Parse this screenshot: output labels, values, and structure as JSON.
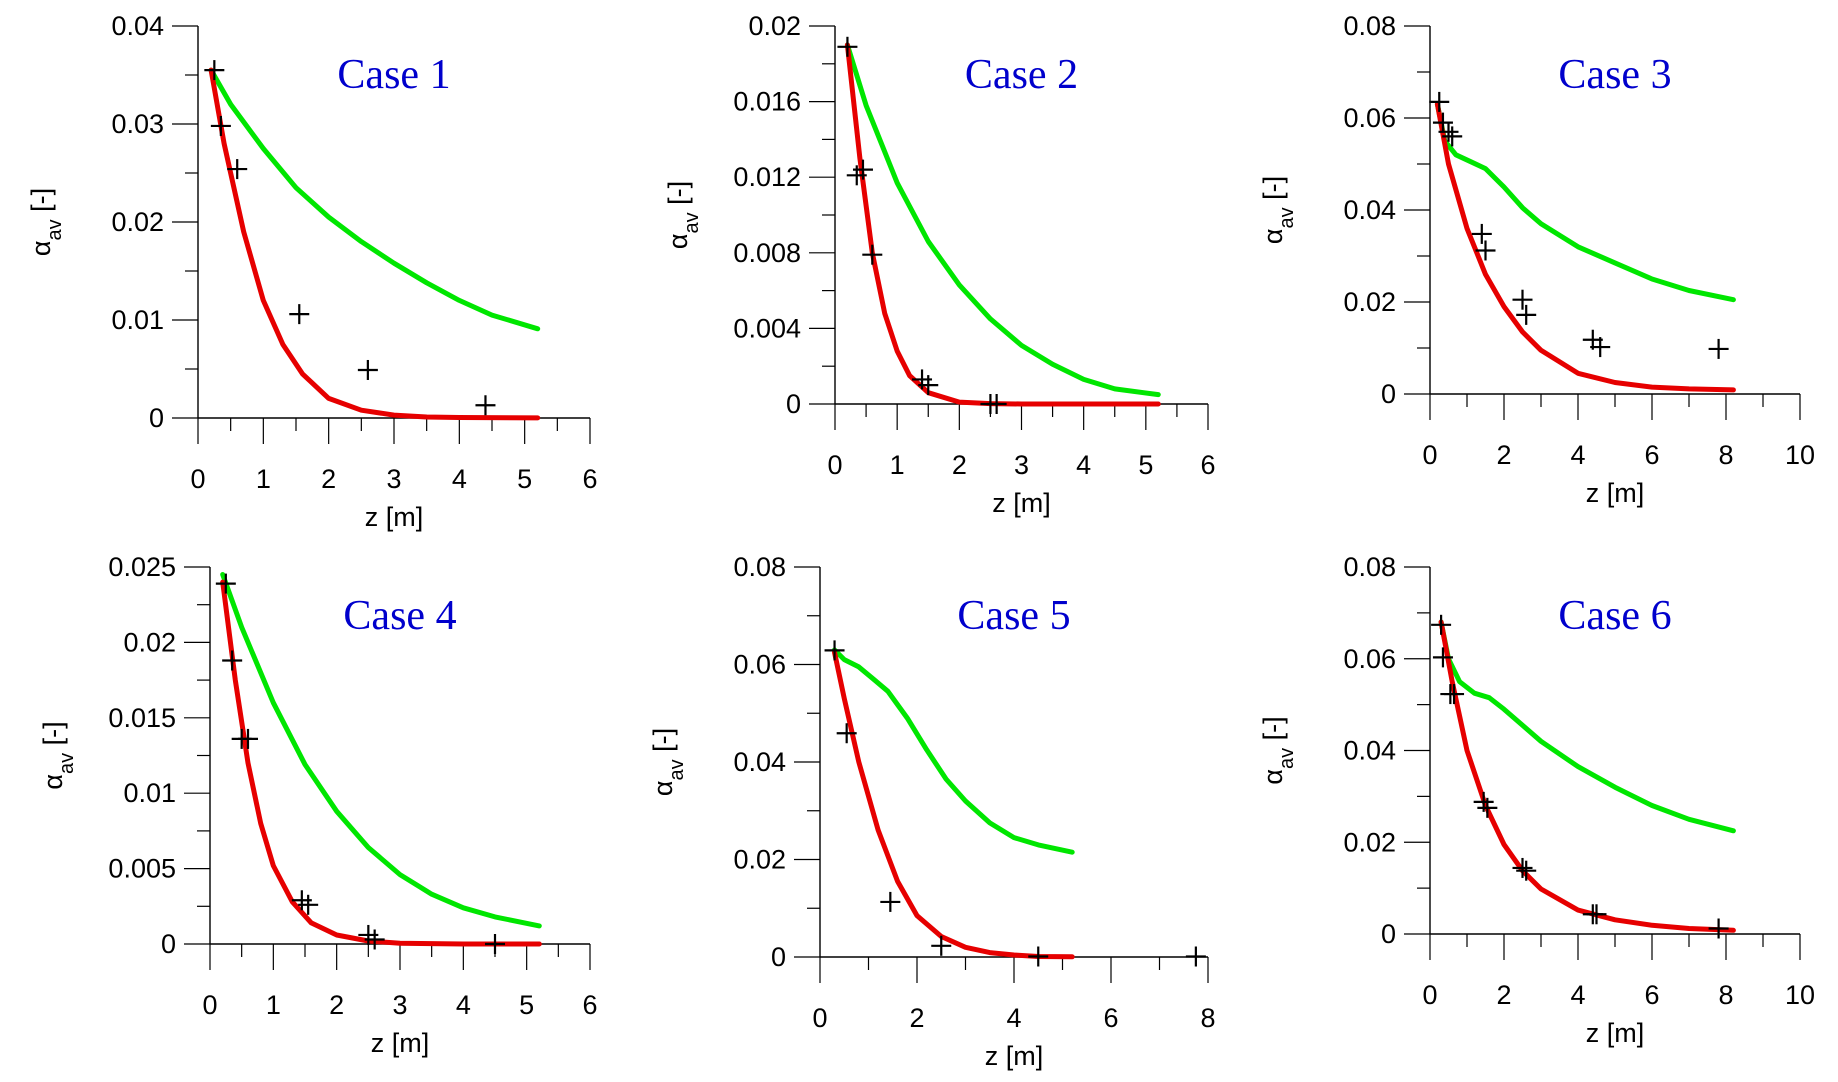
{
  "chart_data": [
    {
      "type": "line",
      "title": "Case 1",
      "xlabel": "z [m]",
      "ylabel": "α_av [-]",
      "xlim": [
        0,
        6
      ],
      "ylim": [
        0,
        0.04
      ],
      "xticks": [
        "0",
        "1",
        "2",
        "3",
        "4",
        "5",
        "6"
      ],
      "yticks": [
        "0",
        "0.01",
        "0.02",
        "0.03",
        "0.04"
      ],
      "series": [
        {
          "color": "#00e600",
          "x": [
            0.2,
            0.5,
            1,
            1.5,
            2,
            2.5,
            3,
            3.5,
            4,
            4.5,
            5.2
          ],
          "y": [
            0.0355,
            0.032,
            0.0275,
            0.0235,
            0.0205,
            0.018,
            0.0158,
            0.0138,
            0.012,
            0.0105,
            0.0091
          ]
        },
        {
          "color": "#e60000",
          "x": [
            0.2,
            0.4,
            0.7,
            1,
            1.3,
            1.6,
            2,
            2.5,
            3,
            3.5,
            4,
            5.2
          ],
          "y": [
            0.0355,
            0.028,
            0.019,
            0.012,
            0.0075,
            0.0045,
            0.002,
            0.0008,
            0.0003,
            0.0001,
            5e-05,
            1e-05
          ]
        }
      ],
      "markers": [
        {
          "x": 0.25,
          "y": 0.0355
        },
        {
          "x": 0.35,
          "y": 0.0298
        },
        {
          "x": 0.6,
          "y": 0.0254
        },
        {
          "x": 1.55,
          "y": 0.0106
        },
        {
          "x": 2.6,
          "y": 0.0049
        },
        {
          "x": 4.4,
          "y": 0.0013
        }
      ]
    },
    {
      "type": "line",
      "title": "Case 2",
      "xlabel": "z [m]",
      "ylabel": "α_av [-]",
      "xlim": [
        0,
        6
      ],
      "ylim": [
        0,
        0.02
      ],
      "xticks": [
        "0",
        "1",
        "2",
        "3",
        "4",
        "5",
        "6"
      ],
      "yticks": [
        "0",
        "0.004",
        "0.008",
        "0.012",
        "0.016",
        "0.02"
      ],
      "series": [
        {
          "color": "#00e600",
          "x": [
            0.2,
            0.5,
            1,
            1.5,
            2,
            2.5,
            3,
            3.5,
            4,
            4.5,
            5.2
          ],
          "y": [
            0.019,
            0.0158,
            0.0117,
            0.0086,
            0.0063,
            0.0045,
            0.0031,
            0.0021,
            0.0013,
            0.0008,
            0.0005
          ]
        },
        {
          "color": "#e60000",
          "x": [
            0.2,
            0.4,
            0.6,
            0.8,
            1,
            1.2,
            1.5,
            2,
            2.5,
            3,
            5.2
          ],
          "y": [
            0.019,
            0.013,
            0.008,
            0.0048,
            0.0028,
            0.0015,
            0.0006,
            0.0001,
            2e-05,
            0,
            0
          ]
        }
      ],
      "markers": [
        {
          "x": 0.2,
          "y": 0.0189
        },
        {
          "x": 0.35,
          "y": 0.0121
        },
        {
          "x": 0.45,
          "y": 0.0124
        },
        {
          "x": 0.6,
          "y": 0.0079
        },
        {
          "x": 1.4,
          "y": 0.0013
        },
        {
          "x": 1.5,
          "y": 0.001
        },
        {
          "x": 2.5,
          "y": 0
        },
        {
          "x": 2.6,
          "y": 0
        }
      ]
    },
    {
      "type": "line",
      "title": "Case 3",
      "xlabel": "z [m]",
      "ylabel": "α_av [-]",
      "xlim": [
        0,
        10
      ],
      "ylim": [
        0,
        0.08
      ],
      "xticks": [
        "0",
        "2",
        "4",
        "6",
        "8",
        "10"
      ],
      "yticks": [
        "0",
        "0.02",
        "0.04",
        "0.06",
        "0.08"
      ],
      "series": [
        {
          "color": "#00e600",
          "x": [
            0.2,
            0.4,
            0.7,
            1.1,
            1.5,
            2,
            2.5,
            3,
            4,
            5,
            6,
            7,
            8.2
          ],
          "y": [
            0.063,
            0.055,
            0.052,
            0.0505,
            0.049,
            0.045,
            0.0405,
            0.037,
            0.032,
            0.0285,
            0.025,
            0.0225,
            0.0205
          ]
        },
        {
          "color": "#e60000",
          "x": [
            0.2,
            0.5,
            1,
            1.5,
            2,
            2.5,
            3,
            4,
            5,
            6,
            7,
            8.2
          ],
          "y": [
            0.063,
            0.05,
            0.036,
            0.026,
            0.019,
            0.0135,
            0.0095,
            0.0045,
            0.0025,
            0.0015,
            0.0011,
            0.0009
          ]
        }
      ],
      "markers": [
        {
          "x": 0.25,
          "y": 0.0635
        },
        {
          "x": 0.35,
          "y": 0.059
        },
        {
          "x": 0.5,
          "y": 0.057
        },
        {
          "x": 0.6,
          "y": 0.056
        },
        {
          "x": 1.4,
          "y": 0.0348
        },
        {
          "x": 1.5,
          "y": 0.0312
        },
        {
          "x": 2.5,
          "y": 0.0205
        },
        {
          "x": 2.6,
          "y": 0.0172
        },
        {
          "x": 4.4,
          "y": 0.0118
        },
        {
          "x": 4.6,
          "y": 0.0102
        },
        {
          "x": 7.8,
          "y": 0.0098
        }
      ]
    },
    {
      "type": "line",
      "title": "Case 4",
      "xlabel": "z [m]",
      "ylabel": "α_av [-]",
      "xlim": [
        0,
        6
      ],
      "ylim": [
        0,
        0.025
      ],
      "xticks": [
        "0",
        "1",
        "2",
        "3",
        "4",
        "5",
        "6"
      ],
      "yticks": [
        "0",
        "0.005",
        "0.01",
        "0.015",
        "0.02",
        "0.025"
      ],
      "series": [
        {
          "color": "#00e600",
          "x": [
            0.2,
            0.5,
            1,
            1.5,
            2,
            2.5,
            3,
            3.5,
            4,
            4.5,
            5.2
          ],
          "y": [
            0.0245,
            0.021,
            0.016,
            0.0119,
            0.0088,
            0.0064,
            0.0046,
            0.0033,
            0.0024,
            0.0018,
            0.0012
          ]
        },
        {
          "color": "#e60000",
          "x": [
            0.2,
            0.4,
            0.6,
            0.8,
            1,
            1.3,
            1.6,
            2,
            2.5,
            3,
            4,
            5.2
          ],
          "y": [
            0.024,
            0.0175,
            0.012,
            0.008,
            0.0052,
            0.0028,
            0.0014,
            0.0006,
            0.0002,
            5e-05,
            0,
            0
          ]
        }
      ],
      "markers": [
        {
          "x": 0.25,
          "y": 0.0239
        },
        {
          "x": 0.35,
          "y": 0.0188
        },
        {
          "x": 0.5,
          "y": 0.0136
        },
        {
          "x": 0.6,
          "y": 0.0136
        },
        {
          "x": 1.45,
          "y": 0.0029
        },
        {
          "x": 1.55,
          "y": 0.0026
        },
        {
          "x": 2.5,
          "y": 0.0006
        },
        {
          "x": 2.6,
          "y": 0.0003
        },
        {
          "x": 4.5,
          "y": 0
        }
      ]
    },
    {
      "type": "line",
      "title": "Case 5",
      "xlabel": "z [m]",
      "ylabel": "α_av [-]",
      "xlim": [
        0,
        8
      ],
      "ylim": [
        0,
        0.08
      ],
      "xticks": [
        "0",
        "2",
        "4",
        "6",
        "8"
      ],
      "yticks": [
        "0",
        "0.02",
        "0.04",
        "0.06",
        "0.08"
      ],
      "series": [
        {
          "color": "#00e600",
          "x": [
            0.3,
            0.5,
            0.8,
            1.1,
            1.4,
            1.8,
            2.2,
            2.6,
            3,
            3.5,
            4,
            4.5,
            5.2
          ],
          "y": [
            0.063,
            0.061,
            0.0595,
            0.057,
            0.0545,
            0.049,
            0.0425,
            0.0365,
            0.032,
            0.0275,
            0.0245,
            0.023,
            0.0215
          ]
        },
        {
          "color": "#e60000",
          "x": [
            0.3,
            0.5,
            0.8,
            1.2,
            1.6,
            2,
            2.5,
            3,
            3.5,
            4,
            4.5,
            5.2
          ],
          "y": [
            0.0625,
            0.053,
            0.04,
            0.026,
            0.0155,
            0.0085,
            0.0042,
            0.002,
            0.0009,
            0.0004,
            0.0001,
            5e-05
          ]
        }
      ],
      "markers": [
        {
          "x": 0.3,
          "y": 0.0629
        },
        {
          "x": 0.55,
          "y": 0.0459
        },
        {
          "x": 1.45,
          "y": 0.0113
        },
        {
          "x": 2.5,
          "y": 0.0023
        },
        {
          "x": 4.5,
          "y": 0.0001
        },
        {
          "x": 7.75,
          "y": 0.0001
        }
      ]
    },
    {
      "type": "line",
      "title": "Case 6",
      "xlabel": "z [m]",
      "ylabel": "α_av [-]",
      "xlim": [
        0,
        10
      ],
      "ylim": [
        0,
        0.08
      ],
      "xticks": [
        "0",
        "2",
        "4",
        "6",
        "8",
        "10"
      ],
      "yticks": [
        "0",
        "0.02",
        "0.04",
        "0.06",
        "0.08"
      ],
      "series": [
        {
          "color": "#00e600",
          "x": [
            0.3,
            0.5,
            0.8,
            1.2,
            1.6,
            2,
            2.5,
            3,
            4,
            5,
            6,
            7,
            8.2
          ],
          "y": [
            0.068,
            0.06,
            0.055,
            0.0525,
            0.0515,
            0.049,
            0.0455,
            0.042,
            0.0365,
            0.032,
            0.028,
            0.025,
            0.0225
          ]
        },
        {
          "color": "#e60000",
          "x": [
            0.3,
            0.6,
            1,
            1.5,
            2,
            2.5,
            3,
            4,
            5,
            6,
            7,
            8.2
          ],
          "y": [
            0.068,
            0.055,
            0.04,
            0.028,
            0.0195,
            0.0138,
            0.0098,
            0.0052,
            0.0031,
            0.0019,
            0.0012,
            0.0008
          ]
        }
      ],
      "markers": [
        {
          "x": 0.3,
          "y": 0.0674
        },
        {
          "x": 0.35,
          "y": 0.0603
        },
        {
          "x": 0.55,
          "y": 0.0523
        },
        {
          "x": 0.65,
          "y": 0.0523
        },
        {
          "x": 1.45,
          "y": 0.0288
        },
        {
          "x": 1.55,
          "y": 0.0275
        },
        {
          "x": 2.5,
          "y": 0.0144
        },
        {
          "x": 2.6,
          "y": 0.0138
        },
        {
          "x": 4.4,
          "y": 0.0043
        },
        {
          "x": 4.5,
          "y": 0.0043
        },
        {
          "x": 7.8,
          "y": 0.0012
        }
      ]
    }
  ]
}
